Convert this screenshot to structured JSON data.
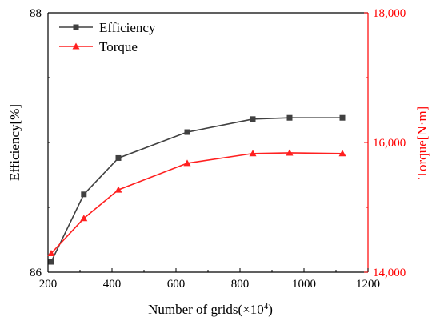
{
  "chart_data": {
    "type": "line",
    "xlabel": "Number of grids(×10",
    "xlabel_sup": "4",
    "xlabel_close": ")",
    "ylabel_left": "Efficiency[%]",
    "ylabel_right": "Torque[N·m]",
    "xlim": [
      200,
      1200
    ],
    "ylim_left": [
      86,
      88
    ],
    "ylim_right": [
      14000,
      18000
    ],
    "x_ticks": [
      200,
      400,
      600,
      800,
      1000,
      1200
    ],
    "y_left_ticks": [
      86,
      88
    ],
    "y_right_ticks": [
      14000,
      16000,
      18000
    ],
    "y_right_tick_labels": [
      "14,000",
      "16,000",
      "18,000"
    ],
    "grid": false,
    "legend_position": "top-left",
    "series": [
      {
        "name": "Efficiency",
        "axis": "left",
        "color": "#404040",
        "marker": "square",
        "x": [
          210,
          312,
          420,
          635,
          840,
          955,
          1120
        ],
        "y": [
          86.08,
          86.6,
          86.88,
          87.08,
          87.18,
          87.19,
          87.19
        ]
      },
      {
        "name": "Torque",
        "axis": "right",
        "color": "#ff2020",
        "marker": "triangle",
        "x": [
          210,
          312,
          420,
          635,
          840,
          955,
          1120
        ],
        "y": [
          14290,
          14830,
          15270,
          15680,
          15830,
          15840,
          15830
        ]
      }
    ],
    "right_axis_color": "#ff0000"
  }
}
